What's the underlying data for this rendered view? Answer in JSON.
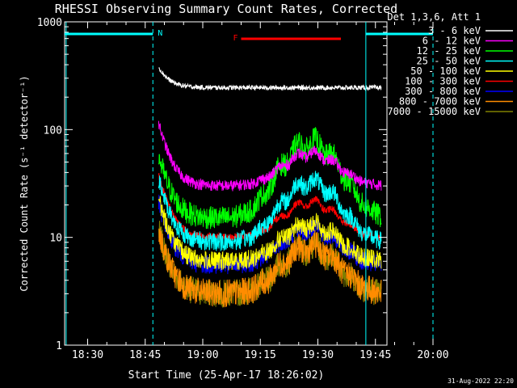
{
  "chart_data": {
    "type": "line",
    "title": "RHESSI Observing Summary Count Rates, Corrected",
    "xlabel": "Start Time (25-Apr-17 18:26:02)",
    "ylabel": "Corrected Count Rate (s⁻¹ detector⁻¹)",
    "yscale": "log",
    "ylim": [
      1,
      1000
    ],
    "xlim_minutes": [
      18.0,
      102.0
    ],
    "x_ticks": [
      {
        "label": "18:30",
        "t": 24
      },
      {
        "label": "18:45",
        "t": 39
      },
      {
        "label": "19:00",
        "t": 54
      },
      {
        "label": "19:15",
        "t": 69
      },
      {
        "label": "19:30",
        "t": 84
      },
      {
        "label": "19:45",
        "t": 99
      },
      {
        "label": "20:00",
        "t": 114
      }
    ],
    "y_ticks": [
      {
        "label": "1",
        "v": 1
      },
      {
        "label": "10",
        "v": 10
      },
      {
        "label": "100",
        "v": 100
      },
      {
        "label": "1000",
        "v": 1000
      }
    ],
    "legend_title": "Det 1,3,6, Att 1",
    "series": [
      {
        "name": "3 - 6 keV",
        "color": "#ffffff",
        "base": 245,
        "hump": 0.0,
        "noise": 0.05
      },
      {
        "name": "6 - 12 keV",
        "color": "#ff00ff",
        "base": 30,
        "hump": 1.0,
        "noise": 0.12
      },
      {
        "name": "12 - 25 keV",
        "color": "#00ff00",
        "base": 15,
        "hump": 4.0,
        "noise": 0.25
      },
      {
        "name": "25 - 50 keV",
        "color": "#00ffff",
        "base": 9,
        "hump": 2.6,
        "noise": 0.2
      },
      {
        "name": "50 - 100 keV",
        "color": "#ffff00",
        "base": 6,
        "hump": 1.2,
        "noise": 0.2
      },
      {
        "name": "100 - 300 keV",
        "color": "#ff0000",
        "base": 10,
        "hump": 1.1,
        "noise": 0.08
      },
      {
        "name": "300 - 800 keV",
        "color": "#0000ff",
        "base": 5.5,
        "hump": 1.2,
        "noise": 0.2
      },
      {
        "name": "800 - 7000 keV",
        "color": "#ff8c00",
        "base": 3,
        "hump": 1.7,
        "noise": 0.3
      },
      {
        "name": "7000 - 15000 keV",
        "color": "#808000",
        "base": 3,
        "hump": 1.7,
        "noise": 0.3
      }
    ],
    "data_window_minutes": [
      42.5,
      100.5
    ],
    "hump_center_minutes": 82,
    "annotations": [
      {
        "label": "N",
        "color": "#00ffff",
        "start": 18.0,
        "end": 41.0
      },
      {
        "label": "F",
        "color": "#ff0000",
        "start": 64.0,
        "end": 90.0
      },
      {
        "label": "",
        "color": "#00ffff",
        "start": 96.5,
        "end": 114.0
      }
    ],
    "vlines_solid": [
      18.4,
      96.5
    ],
    "vlines_dashed": [
      41.0,
      114.0
    ],
    "footer": "31-Aug-2022 22:20"
  }
}
